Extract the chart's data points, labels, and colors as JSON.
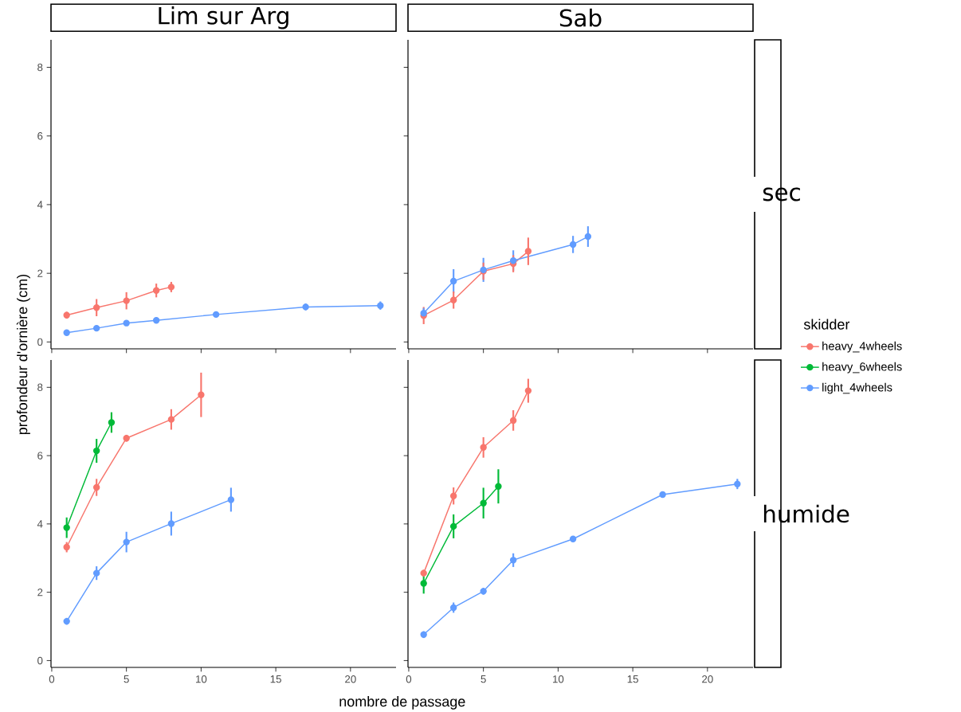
{
  "chart_data": [
    {
      "type": "line",
      "title": "Lim sur Arg",
      "xlim": [
        -0.05,
        23.05
      ],
      "ylim": [
        -0.2,
        8.8
      ],
      "xticks": [
        0,
        5,
        10,
        15,
        20
      ],
      "yticks": [
        0,
        2,
        4,
        6,
        8
      ],
      "tick_labels": "y",
      "marker": "circle",
      "grid": false,
      "series": [
        {
          "color": "#f8766d",
          "x": [
            1,
            3,
            5,
            7,
            8
          ],
          "values": [
            0.78,
            1.0,
            1.2,
            1.5,
            1.6
          ],
          "errors": [
            0.1,
            0.25,
            0.25,
            0.2,
            0.15
          ]
        },
        {
          "color": "#619cff",
          "x": [
            1,
            3,
            5,
            7,
            11,
            17,
            22
          ],
          "values": [
            0.27,
            0.4,
            0.55,
            0.63,
            0.8,
            1.02,
            1.06
          ],
          "errors": [
            0.05,
            0.07,
            0.07,
            0.07,
            0.07,
            0.1,
            0.12
          ]
        }
      ]
    },
    {
      "type": "line",
      "title": "Sab",
      "y2label": "sec",
      "xlim": [
        -0.05,
        23.05
      ],
      "ylim": [
        -0.2,
        8.8
      ],
      "xticks": [
        0,
        5,
        10,
        15,
        20
      ],
      "yticks": [
        0,
        2,
        4,
        6,
        8
      ],
      "tick_labels": false,
      "marker": "circle",
      "grid": false,
      "series": [
        {
          "color": "#f8766d",
          "x": [
            1,
            3,
            5,
            7,
            8
          ],
          "values": [
            0.77,
            1.22,
            2.06,
            2.28,
            2.64
          ],
          "errors": [
            0.25,
            0.25,
            0.25,
            0.25,
            0.4
          ]
        },
        {
          "color": "#619cff",
          "x": [
            1,
            3,
            5,
            7,
            11,
            12
          ],
          "values": [
            0.84,
            1.77,
            2.1,
            2.37,
            2.84,
            3.07
          ],
          "errors": [
            0.15,
            0.35,
            0.35,
            0.3,
            0.25,
            0.3
          ]
        }
      ]
    },
    {
      "type": "line",
      "xlabel": "nombre de passage",
      "ylabel": "profondeur d'ornière (cm)",
      "xlim": [
        -0.05,
        23.05
      ],
      "ylim": [
        -0.2,
        8.8
      ],
      "xticks": [
        0,
        5,
        10,
        15,
        20
      ],
      "yticks": [
        0,
        2,
        4,
        6,
        8
      ],
      "marker": "circle",
      "grid": false,
      "series": [
        {
          "color": "#f8766d",
          "x": [
            1,
            3,
            5,
            8,
            10
          ],
          "values": [
            3.32,
            5.07,
            6.51,
            7.06,
            7.78
          ],
          "errors": [
            0.15,
            0.25,
            0.1,
            0.3,
            0.65
          ]
        },
        {
          "color": "#00ba38",
          "x": [
            1,
            3,
            4
          ],
          "values": [
            3.89,
            6.14,
            6.97
          ],
          "errors": [
            0.3,
            0.35,
            0.3
          ]
        },
        {
          "color": "#619cff",
          "x": [
            1,
            3,
            5,
            8,
            12
          ],
          "values": [
            1.15,
            2.56,
            3.47,
            4.01,
            4.71
          ],
          "errors": [
            0.1,
            0.2,
            0.3,
            0.35,
            0.35
          ]
        }
      ]
    },
    {
      "type": "line",
      "y2label": "humide",
      "legend": "right",
      "legend_title": "skidder",
      "xlim": [
        -0.05,
        23.05
      ],
      "ylim": [
        -0.2,
        8.8
      ],
      "xticks": [
        0,
        5,
        10,
        15,
        20
      ],
      "yticks": [
        0,
        2,
        4,
        6,
        8
      ],
      "tick_labels": "x",
      "marker": "circle",
      "grid": false,
      "series": [
        {
          "name": "heavy_4wheels",
          "color": "#f8766d",
          "x": [
            1,
            3,
            5,
            7,
            8
          ],
          "values": [
            2.56,
            4.82,
            6.24,
            7.03,
            7.9
          ],
          "errors": [
            0.1,
            0.25,
            0.3,
            0.3,
            0.35
          ]
        },
        {
          "name": "heavy_6wheels",
          "color": "#00ba38",
          "x": [
            1,
            3,
            5,
            6
          ],
          "values": [
            2.26,
            3.93,
            4.61,
            5.1
          ],
          "errors": [
            0.3,
            0.35,
            0.45,
            0.5
          ]
        },
        {
          "name": "light_4wheels",
          "color": "#619cff",
          "x": [
            1,
            3,
            5,
            7,
            11,
            17,
            22
          ],
          "values": [
            0.76,
            1.55,
            2.03,
            2.94,
            3.56,
            4.86,
            5.17
          ],
          "errors": [
            0.1,
            0.15,
            0.1,
            0.2,
            0.08,
            0.08,
            0.15
          ]
        }
      ]
    }
  ]
}
